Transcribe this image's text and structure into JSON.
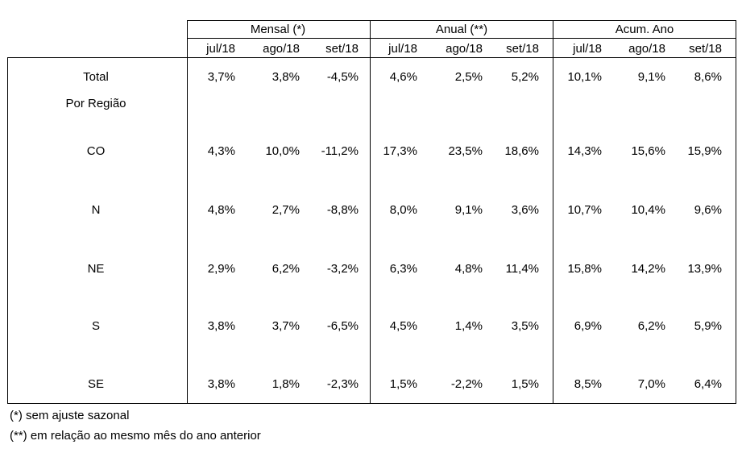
{
  "groups": [
    "Mensal (*)",
    "Anual (**)",
    "Acum. Ano"
  ],
  "months": [
    "jul/18",
    "ago/18",
    "set/18"
  ],
  "section_label": "Por Região",
  "rows": [
    {
      "label": "Total",
      "values": [
        "3,7%",
        "3,8%",
        "-4,5%",
        "4,6%",
        "2,5%",
        "5,2%",
        "10,1%",
        "9,1%",
        "8,6%"
      ]
    },
    {
      "label": "CO",
      "values": [
        "4,3%",
        "10,0%",
        "-11,2%",
        "17,3%",
        "23,5%",
        "18,6%",
        "14,3%",
        "15,6%",
        "15,9%"
      ]
    },
    {
      "label": "N",
      "values": [
        "4,8%",
        "2,7%",
        "-8,8%",
        "8,0%",
        "9,1%",
        "3,6%",
        "10,7%",
        "10,4%",
        "9,6%"
      ]
    },
    {
      "label": "NE",
      "values": [
        "2,9%",
        "6,2%",
        "-3,2%",
        "6,3%",
        "4,8%",
        "11,4%",
        "15,8%",
        "14,2%",
        "13,9%"
      ]
    },
    {
      "label": "S",
      "values": [
        "3,8%",
        "3,7%",
        "-6,5%",
        "4,5%",
        "1,4%",
        "3,5%",
        "6,9%",
        "6,2%",
        "5,9%"
      ]
    },
    {
      "label": "SE",
      "values": [
        "3,8%",
        "1,8%",
        "-2,3%",
        "1,5%",
        "-2,2%",
        "1,5%",
        "8,5%",
        "7,0%",
        "6,4%"
      ]
    }
  ],
  "footnotes": [
    "(*) sem ajuste sazonal",
    "(**) em relação ao mesmo mês do ano anterior"
  ]
}
